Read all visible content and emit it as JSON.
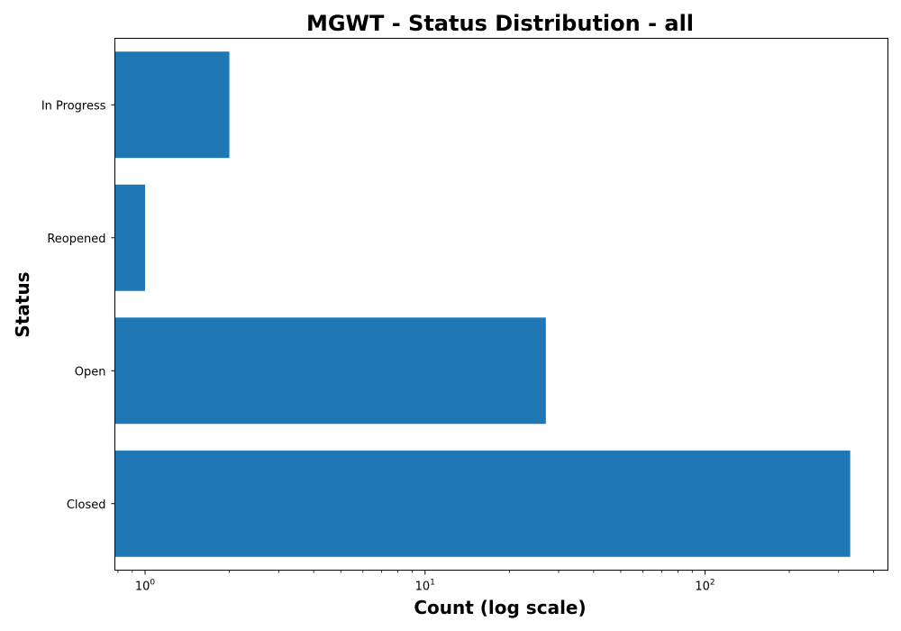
{
  "chart_data": {
    "type": "bar",
    "orientation": "horizontal",
    "title": "MGWT - Status Distribution - all",
    "xlabel": "Count (log scale)",
    "ylabel": "Status",
    "x_scale": "log",
    "xlim": [
      0.78,
      450
    ],
    "x_ticks": [
      {
        "value": 1,
        "base": "10",
        "exp": "0"
      },
      {
        "value": 10,
        "base": "10",
        "exp": "1"
      },
      {
        "value": 100,
        "base": "10",
        "exp": "2"
      }
    ],
    "categories": [
      "In Progress",
      "Reopened",
      "Open",
      "Closed"
    ],
    "values": [
      2,
      1,
      27,
      330
    ],
    "grid": false,
    "legend": "none",
    "colors": {
      "bar": "#1f77b4",
      "axis": "#000000",
      "background": "#ffffff"
    }
  }
}
